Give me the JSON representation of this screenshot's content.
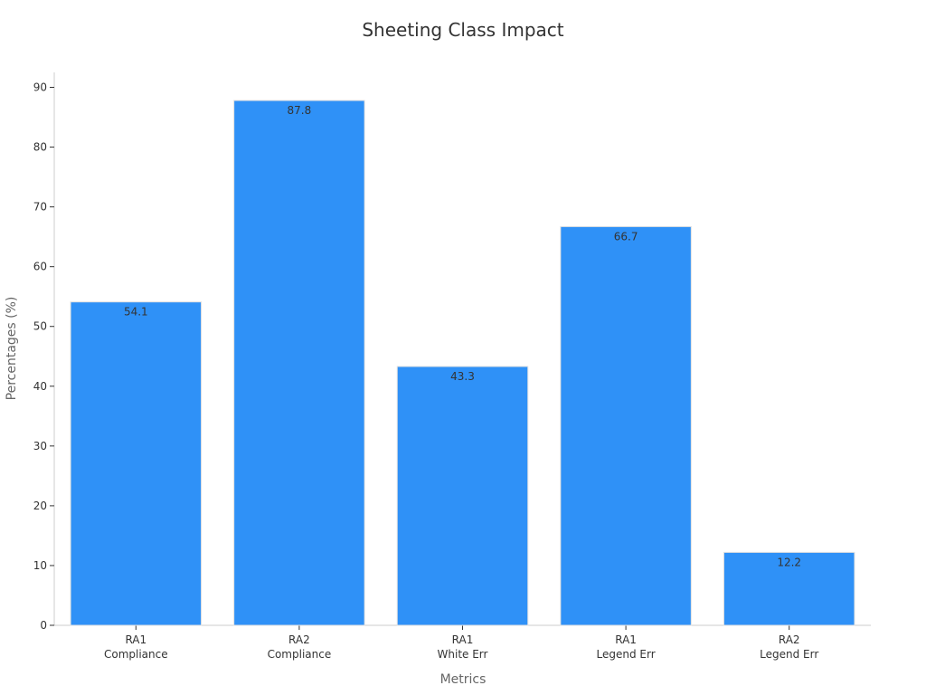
{
  "chart_data": {
    "type": "bar",
    "title": "Sheeting Class Impact",
    "xlabel": "Metrics",
    "ylabel": "Percentages (%)",
    "categories": [
      [
        "RA1",
        "Compliance"
      ],
      [
        "RA2",
        "Compliance"
      ],
      [
        "RA1",
        "White Err"
      ],
      [
        "RA1",
        "Legend Err"
      ],
      [
        "RA2",
        "Legend Err"
      ]
    ],
    "values": [
      54.1,
      87.8,
      43.3,
      66.7,
      12.2
    ],
    "value_labels": [
      "54.1",
      "87.8",
      "43.3",
      "66.7",
      "12.2"
    ],
    "ylim": [
      0,
      92.5
    ],
    "yticks": [
      0,
      10,
      20,
      30,
      40,
      50,
      60,
      70,
      80,
      90
    ],
    "ytick_labels": [
      "0",
      "10",
      "20",
      "30",
      "40",
      "50",
      "60",
      "70",
      "80",
      "90"
    ],
    "grid": false,
    "colors": {
      "bar": "#2f91f7",
      "bar_edge": "#e0e0e0",
      "axis": "#cccccc",
      "tick": "#333333"
    }
  }
}
